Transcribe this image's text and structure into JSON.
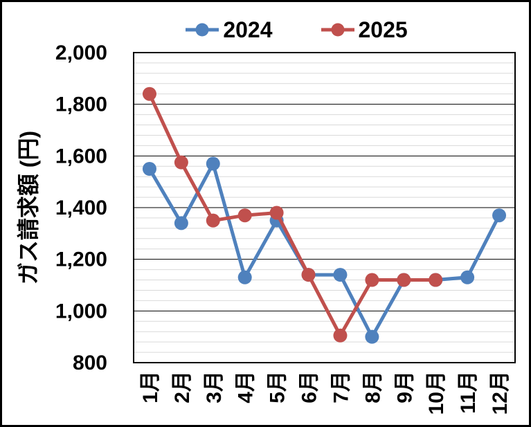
{
  "legend": {
    "items": [
      {
        "label": "2024",
        "color": "#4F81BD"
      },
      {
        "label": "2025",
        "color": "#C0504D"
      }
    ]
  },
  "y_axis": {
    "title": "ガス請求額 (円)",
    "tick_labels": [
      "2,000",
      "1,800",
      "1,600",
      "1,400",
      "1,200",
      "1,000",
      "800"
    ]
  },
  "x_axis": {
    "labels": [
      "1月",
      "2月",
      "3月",
      "4月",
      "5月",
      "6月",
      "7月",
      "8月",
      "9月",
      "10月",
      "11月",
      "12月"
    ]
  },
  "colors": {
    "major_grid": "#000000",
    "minor_grid": "#D9D9D9",
    "plot_border": "#000000",
    "background": "#FFFFFF"
  },
  "chart_data": {
    "type": "line",
    "categories": [
      "1月",
      "2月",
      "3月",
      "4月",
      "5月",
      "6月",
      "7月",
      "8月",
      "9月",
      "10月",
      "11月",
      "12月"
    ],
    "series": [
      {
        "name": "2024",
        "color": "#4F81BD",
        "values": [
          1550,
          1340,
          1570,
          1130,
          1350,
          1140,
          1140,
          900,
          1120,
          1120,
          1130,
          1370
        ]
      },
      {
        "name": "2025",
        "color": "#C0504D",
        "values": [
          1840,
          1575,
          1350,
          1370,
          1380,
          1140,
          905,
          1120,
          1120,
          1120
        ]
      }
    ],
    "title": "",
    "xlabel": "",
    "ylabel": "ガス請求額 (円)",
    "ylim": [
      800,
      2000
    ],
    "ytick_step": 200,
    "yminor_step": 40,
    "grid": true,
    "legend_position": "top",
    "marker": "circle",
    "line_width": 5,
    "marker_radius": 10
  }
}
